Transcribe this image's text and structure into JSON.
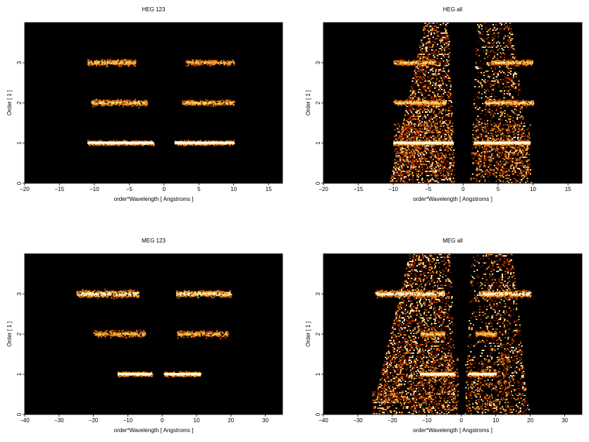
{
  "chart_data": [
    {
      "type": "heatmap",
      "title": "HEG 123",
      "xlabel": "order*Wavelength [ Angstroms ]",
      "ylabel": "Order [ 1 ]",
      "xlim": [
        -20,
        17
      ],
      "ylim": [
        0,
        4
      ],
      "xticks": [
        -20,
        -15,
        -10,
        -5,
        0,
        5,
        10,
        15
      ],
      "xtick_labels": [
        "−20",
        "−15",
        "−10",
        "−5",
        "0",
        "5",
        "10",
        "15"
      ],
      "yticks": [
        0,
        1,
        2,
        3
      ],
      "ytick_labels": [
        "0",
        "1",
        "2",
        "3"
      ],
      "colormap": [
        "#000000",
        "#5a0a00",
        "#b33a00",
        "#f08a10",
        "#ffe070",
        "#ffffff"
      ],
      "grid": false,
      "features": [
        {
          "order": 1,
          "x_range": [
            -11,
            -1.5
          ],
          "intensity": 1.0,
          "spread": 0.04
        },
        {
          "order": 1,
          "x_range": [
            1.5,
            10
          ],
          "intensity": 1.0,
          "spread": 0.04
        },
        {
          "order": 2,
          "x_range": [
            -10.5,
            -2.5
          ],
          "intensity": 0.55,
          "spread": 0.06
        },
        {
          "order": 2,
          "x_range": [
            2.5,
            10
          ],
          "intensity": 0.55,
          "spread": 0.05
        },
        {
          "order": 3,
          "x_range": [
            -11,
            -4
          ],
          "intensity": 0.5,
          "spread": 0.06
        },
        {
          "order": 3,
          "x_range": [
            3,
            10
          ],
          "intensity": 0.45,
          "spread": 0.05
        }
      ],
      "background": []
    },
    {
      "type": "heatmap",
      "title": "HEG all",
      "xlabel": "order*Wavelength [ Angstroms ]",
      "ylabel": "Order [ 1 ]",
      "xlim": [
        -20,
        17
      ],
      "ylim": [
        0,
        4
      ],
      "xticks": [
        -20,
        -15,
        -10,
        -5,
        0,
        5,
        10,
        15
      ],
      "xtick_labels": [
        "−20",
        "−15",
        "−10",
        "−5",
        "0",
        "5",
        "10",
        "15"
      ],
      "yticks": [
        0,
        1,
        2,
        3
      ],
      "ytick_labels": [
        "0",
        "1",
        "2",
        "3"
      ],
      "colormap": [
        "#000000",
        "#5a0a00",
        "#b33a00",
        "#f08a10",
        "#ffe070",
        "#ffffff"
      ],
      "grid": false,
      "features": [
        {
          "order": 1,
          "x_range": [
            -10,
            -1.5
          ],
          "intensity": 1.0,
          "spread": 0.04
        },
        {
          "order": 1,
          "x_range": [
            1.5,
            9.5
          ],
          "intensity": 1.0,
          "spread": 0.04
        },
        {
          "order": 2,
          "x_range": [
            -10,
            -2.5
          ],
          "intensity": 0.6,
          "spread": 0.05
        },
        {
          "order": 2,
          "x_range": [
            3,
            10
          ],
          "intensity": 0.6,
          "spread": 0.05
        },
        {
          "order": 3,
          "x_range": [
            -10,
            -4
          ],
          "intensity": 0.55,
          "spread": 0.05
        },
        {
          "order": 3,
          "x_range": [
            4,
            10
          ],
          "intensity": 0.55,
          "spread": 0.05
        }
      ],
      "background": [
        {
          "shape": "wedge",
          "bottom": [
            -10.5,
            -1
          ],
          "top": [
            -5.5,
            -2
          ],
          "density": 0.35
        },
        {
          "shape": "wedge",
          "bottom": [
            1,
            10
          ],
          "top": [
            2,
            7
          ],
          "density": 0.35
        },
        {
          "shape": "rect",
          "x": [
            -10,
            -1.5
          ],
          "y": [
            0.2,
            1.5
          ],
          "density": 0.55
        },
        {
          "shape": "rect",
          "x": [
            1.5,
            9.5
          ],
          "y": [
            0.2,
            1.5
          ],
          "density": 0.55
        }
      ]
    },
    {
      "type": "heatmap",
      "title": "MEG 123",
      "xlabel": "order*Wavelength [ Angstroms ]",
      "ylabel": "Order [ 1 ]",
      "xlim": [
        -40,
        35
      ],
      "ylim": [
        0,
        4
      ],
      "xticks": [
        -40,
        -30,
        -20,
        -10,
        0,
        10,
        20,
        30
      ],
      "xtick_labels": [
        "−40",
        "−30",
        "−20",
        "−10",
        "0",
        "10",
        "20",
        "30"
      ],
      "yticks": [
        0,
        1,
        2,
        3
      ],
      "ytick_labels": [
        "0",
        "1",
        "2",
        "3"
      ],
      "colormap": [
        "#000000",
        "#5a0a00",
        "#b33a00",
        "#f08a10",
        "#ffe070",
        "#ffffff"
      ],
      "grid": false,
      "features": [
        {
          "order": 1,
          "x_range": [
            -13,
            -3
          ],
          "intensity": 1.0,
          "spread": 0.04
        },
        {
          "order": 1,
          "x_range": [
            0.5,
            11
          ],
          "intensity": 1.0,
          "spread": 0.04
        },
        {
          "order": 2,
          "x_range": [
            -20,
            -5
          ],
          "intensity": 0.45,
          "spread": 0.06
        },
        {
          "order": 2,
          "x_range": [
            4,
            19
          ],
          "intensity": 0.45,
          "spread": 0.06
        },
        {
          "order": 3,
          "x_range": [
            -25,
            -7
          ],
          "intensity": 0.8,
          "spread": 0.07
        },
        {
          "order": 3,
          "x_range": [
            4,
            20
          ],
          "intensity": 0.75,
          "spread": 0.06
        }
      ],
      "background": []
    },
    {
      "type": "heatmap",
      "title": "MEG all",
      "xlabel": "order*Wavelength [ Angstroms ]",
      "ylabel": "Order [ 1 ]",
      "xlim": [
        -40,
        35
      ],
      "ylim": [
        0,
        4
      ],
      "xticks": [
        -40,
        -30,
        -20,
        -10,
        0,
        10,
        20,
        30
      ],
      "xtick_labels": [
        "−40",
        "−30",
        "−20",
        "−10",
        "0",
        "10",
        "20",
        "30"
      ],
      "yticks": [
        0,
        1,
        2,
        3
      ],
      "ytick_labels": [
        "0",
        "1",
        "2",
        "3"
      ],
      "colormap": [
        "#000000",
        "#5a0a00",
        "#b33a00",
        "#f08a10",
        "#ffe070",
        "#ffffff"
      ],
      "grid": false,
      "features": [
        {
          "order": 1,
          "x_range": [
            -12,
            -2
          ],
          "intensity": 1.0,
          "spread": 0.04
        },
        {
          "order": 1,
          "x_range": [
            2,
            10
          ],
          "intensity": 1.0,
          "spread": 0.04
        },
        {
          "order": 2,
          "x_range": [
            -12,
            -5
          ],
          "intensity": 0.55,
          "spread": 0.05
        },
        {
          "order": 2,
          "x_range": [
            4,
            10
          ],
          "intensity": 0.55,
          "spread": 0.05
        },
        {
          "order": 3,
          "x_range": [
            -25,
            -5
          ],
          "intensity": 0.85,
          "spread": 0.06
        },
        {
          "order": 3,
          "x_range": [
            5,
            20
          ],
          "intensity": 0.85,
          "spread": 0.06
        }
      ],
      "background": [
        {
          "shape": "wedge",
          "bottom": [
            -26,
            -1
          ],
          "top": [
            -15,
            -3
          ],
          "density": 0.3
        },
        {
          "shape": "wedge",
          "bottom": [
            1,
            20
          ],
          "top": [
            3,
            15
          ],
          "density": 0.3
        },
        {
          "shape": "rect",
          "x": [
            -26,
            -15
          ],
          "y": [
            0.3,
            0.6
          ],
          "density": 0.9
        },
        {
          "shape": "rect",
          "x": [
            -14,
            -1
          ],
          "y": [
            0.1,
            1.4
          ],
          "density": 0.45
        },
        {
          "shape": "rect",
          "x": [
            1,
            14
          ],
          "y": [
            0.1,
            1.4
          ],
          "density": 0.45
        }
      ]
    }
  ]
}
